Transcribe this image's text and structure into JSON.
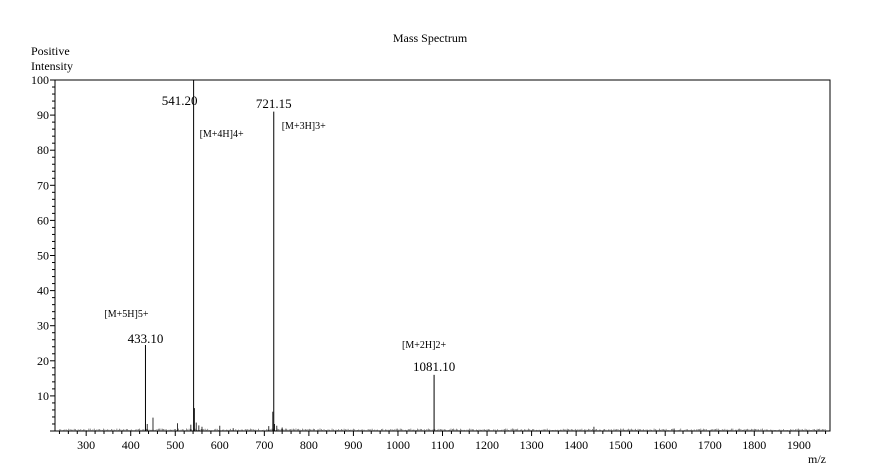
{
  "chart_data": {
    "type": "line",
    "title": "Mass Spectrum",
    "ylabel_line1": "Positive",
    "ylabel_line2": "Intensity",
    "xlabel": "m/z",
    "xlim": [
      230,
      1970
    ],
    "ylim": [
      0,
      100
    ],
    "x_ticks": [
      300,
      400,
      500,
      600,
      700,
      800,
      900,
      1000,
      1100,
      1200,
      1300,
      1400,
      1500,
      1600,
      1700,
      1800,
      1900
    ],
    "y_ticks": [
      10,
      20,
      30,
      40,
      50,
      60,
      70,
      80,
      90,
      100
    ],
    "grid": false,
    "peaks": [
      {
        "mz": 433.1,
        "intensity": 24.5
      },
      {
        "mz": 541.2,
        "intensity": 100
      },
      {
        "mz": 721.15,
        "intensity": 91
      },
      {
        "mz": 1081.1,
        "intensity": 16
      }
    ],
    "minor_peaks": [
      {
        "mz": 450,
        "intensity": 3.8
      },
      {
        "mz": 437,
        "intensity": 2.0
      },
      {
        "mz": 505,
        "intensity": 2.2
      },
      {
        "mz": 535,
        "intensity": 1.8
      },
      {
        "mz": 543,
        "intensity": 6.5
      },
      {
        "mz": 547,
        "intensity": 2.4
      },
      {
        "mz": 553,
        "intensity": 1.6
      },
      {
        "mz": 560,
        "intensity": 1.2
      },
      {
        "mz": 600,
        "intensity": 1.5
      },
      {
        "mz": 630,
        "intensity": 0.8
      },
      {
        "mz": 710,
        "intensity": 1.4
      },
      {
        "mz": 719,
        "intensity": 5.5
      },
      {
        "mz": 723,
        "intensity": 2.0
      },
      {
        "mz": 728,
        "intensity": 1.5
      },
      {
        "mz": 740,
        "intensity": 1.0
      },
      {
        "mz": 1440,
        "intensity": 1.2
      },
      {
        "mz": 1620,
        "intensity": 0.7
      }
    ],
    "annotations": [
      {
        "text": "541.20",
        "mz": 541.2,
        "role": "mz-label"
      },
      {
        "text": "721.15",
        "mz": 721.15,
        "role": "mz-label"
      },
      {
        "text": "433.10",
        "mz": 433.1,
        "role": "mz-label"
      },
      {
        "text": "1081.10",
        "mz": 1081.1,
        "role": "mz-label"
      },
      {
        "text": "[M+4H]4+",
        "mz": 541.2,
        "role": "ion-label"
      },
      {
        "text": "[M+3H]3+",
        "mz": 721.15,
        "role": "ion-label"
      },
      {
        "text": "[M+5H]5+",
        "mz": 433.1,
        "role": "ion-label"
      },
      {
        "text": "[M+2H]2+",
        "mz": 1081.1,
        "role": "ion-label"
      }
    ]
  }
}
